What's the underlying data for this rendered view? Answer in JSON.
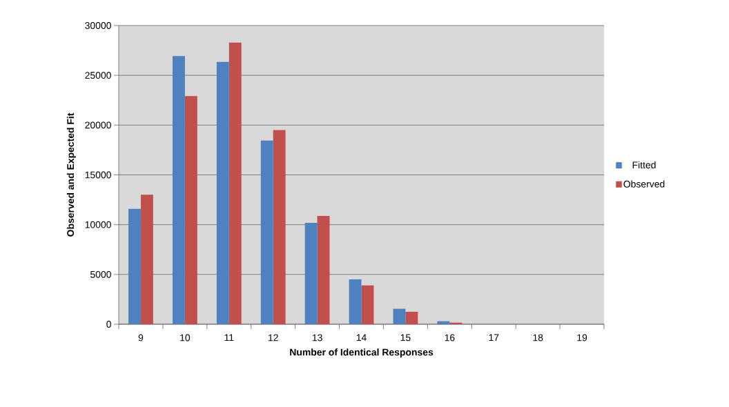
{
  "chart_data": {
    "type": "bar",
    "xlabel": "Number of Identical Responses",
    "ylabel": "Observed and Expected Fit",
    "categories": [
      "9",
      "10",
      "11",
      "12",
      "13",
      "14",
      "15",
      "16",
      "17",
      "18",
      "19"
    ],
    "series": [
      {
        "name": "Fitted",
        "color": "#4f81bd",
        "values": [
          11590,
          26940,
          26340,
          18440,
          10180,
          4500,
          1550,
          300,
          null,
          0,
          0
        ]
      },
      {
        "name": "Observed",
        "color": "#c0504d",
        "values": [
          13000,
          22920,
          28280,
          19510,
          10870,
          3900,
          1250,
          160,
          null,
          0,
          0
        ]
      }
    ],
    "ylim": [
      0,
      30000
    ],
    "yticks": [
      0,
      5000,
      10000,
      15000,
      20000,
      25000,
      30000
    ],
    "grid": "y",
    "legend": "right"
  }
}
